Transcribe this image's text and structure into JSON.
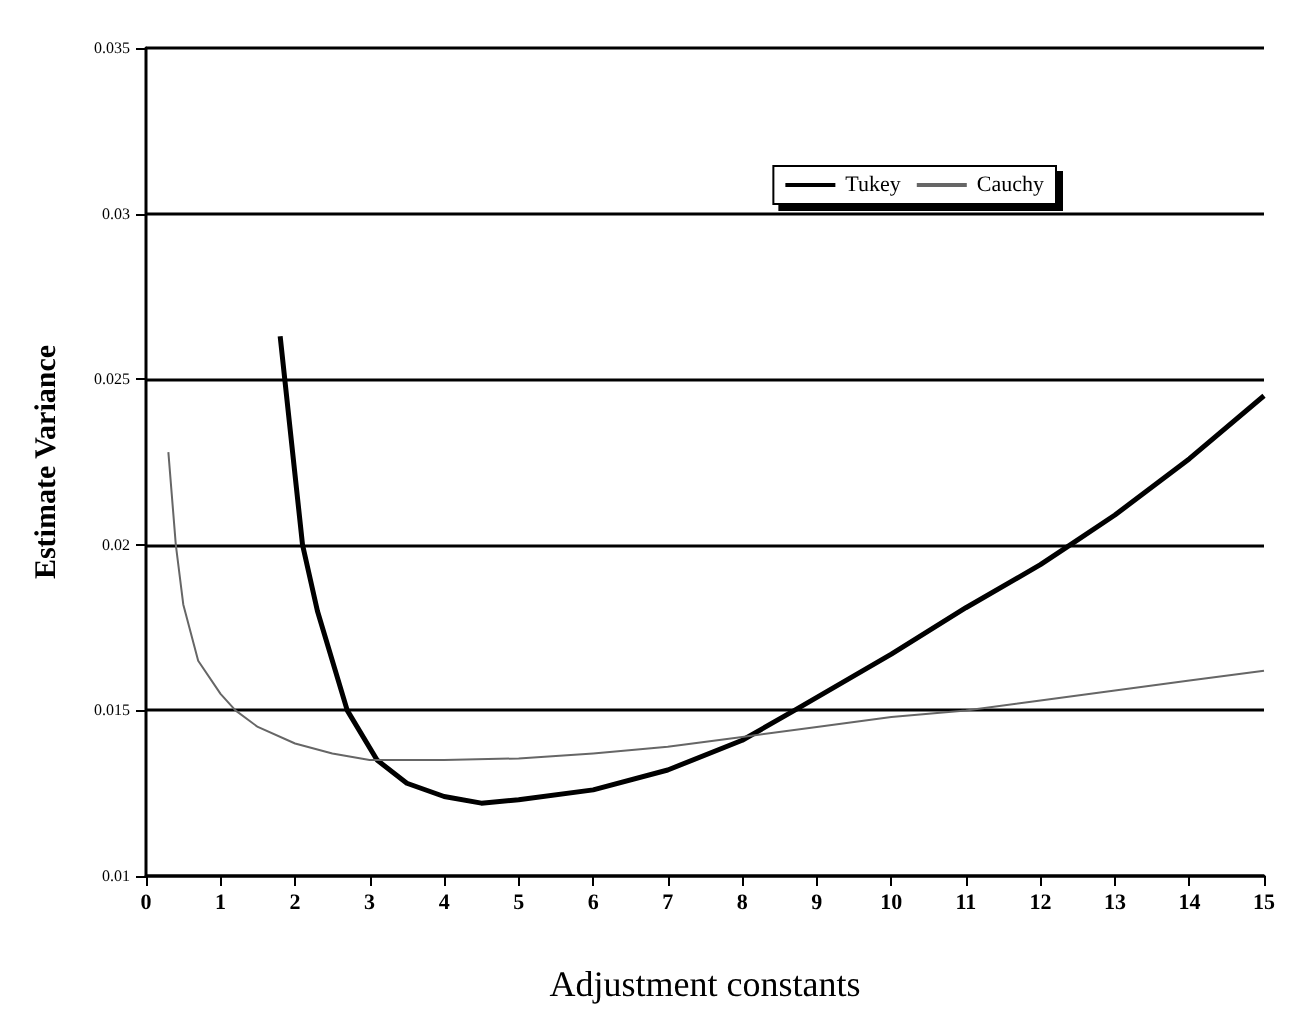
{
  "chart_data": {
    "type": "line",
    "xlabel": "Adjustment constants",
    "ylabel": "Estimate Variance",
    "xlim": [
      0,
      15
    ],
    "xticks": [
      0,
      1,
      2,
      3,
      4,
      5,
      6,
      7,
      8,
      9,
      10,
      11,
      12,
      13,
      14,
      15
    ],
    "ylim": [
      0.01,
      0.035
    ],
    "yticks": [
      0.01,
      0.015,
      0.02,
      0.025,
      0.03,
      0.035
    ],
    "grid": "y",
    "legend": "top right",
    "marker": "none",
    "line_style": "solid",
    "series": [
      {
        "name": "Tukey",
        "color": "#000000",
        "x": [
          1.8,
          2.1,
          2.3,
          2.7,
          3.1,
          3.5,
          4,
          4.5,
          5,
          6,
          7,
          8,
          8.7,
          10,
          11,
          12,
          12.4,
          13,
          14,
          15
        ],
        "values": [
          0.0263,
          0.02,
          0.018,
          0.015,
          0.0135,
          0.0128,
          0.0124,
          0.0122,
          0.0123,
          0.0126,
          0.0132,
          0.0141,
          0.015,
          0.0167,
          0.0181,
          0.0194,
          0.02,
          0.0209,
          0.0226,
          0.0245
        ]
      },
      {
        "name": "Cauchy",
        "color": "#666666",
        "x": [
          0.3,
          0.4,
          0.5,
          0.7,
          1,
          1.2,
          1.5,
          2,
          2.5,
          3,
          4,
          5,
          6,
          7,
          8,
          9,
          10,
          11,
          12,
          13,
          14,
          15
        ],
        "values": [
          0.0228,
          0.02,
          0.0182,
          0.0165,
          0.0155,
          0.015,
          0.0145,
          0.014,
          0.0137,
          0.0135,
          0.0135,
          0.01355,
          0.0137,
          0.0139,
          0.0142,
          0.0145,
          0.0148,
          0.015,
          0.0153,
          0.0156,
          0.0159,
          0.0162
        ]
      }
    ]
  }
}
